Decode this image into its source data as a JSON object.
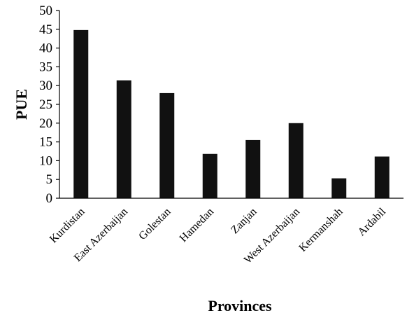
{
  "chart_data": {
    "type": "bar",
    "title": "",
    "xlabel": "Provinces",
    "ylabel": "PUE",
    "ylim": [
      0,
      50
    ],
    "yticks": [
      0,
      5,
      10,
      15,
      20,
      25,
      30,
      35,
      40,
      45,
      50
    ],
    "grid": false,
    "categories": [
      "Kurdistan",
      "East Azerbaijan",
      "Golestan",
      "Hamedan",
      "Zanjan",
      "West Azerbaijan",
      "Kermanshah",
      "Ardabil"
    ],
    "values": [
      44.8,
      31.4,
      28.0,
      11.8,
      15.5,
      20.0,
      5.3,
      11.1
    ],
    "bar_color": "#111111",
    "axis_color": "#000000"
  }
}
